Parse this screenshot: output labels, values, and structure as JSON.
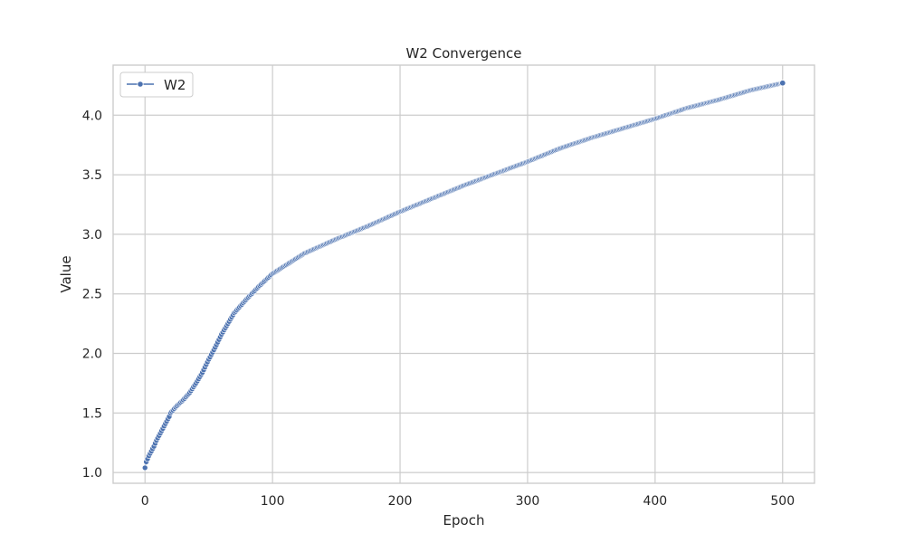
{
  "chart_data": {
    "type": "line",
    "title": "W2 Convergence",
    "xlabel": "Epoch",
    "ylabel": "Value",
    "xlim": [
      -25,
      525
    ],
    "ylim": [
      0.91,
      4.42
    ],
    "xticks": [
      0,
      100,
      200,
      300,
      400,
      500
    ],
    "xtick_labels": [
      "0",
      "100",
      "200",
      "300",
      "400",
      "500"
    ],
    "yticks": [
      1.0,
      1.5,
      2.0,
      2.5,
      3.0,
      3.5,
      4.0
    ],
    "ytick_labels": [
      "1.0",
      "1.5",
      "2.0",
      "2.5",
      "3.0",
      "3.5",
      "4.0"
    ],
    "grid": true,
    "legend_position": "top-left",
    "legend": [
      "W2"
    ],
    "series_color": "#4c72b0",
    "background_color": "#ffffff",
    "grid_color": "#cccccc",
    "series": [
      {
        "name": "W2",
        "marker": "circle",
        "points": [
          [
            0,
            1.04
          ],
          [
            1,
            1.09
          ],
          [
            3,
            1.14
          ],
          [
            5,
            1.18
          ],
          [
            7,
            1.22
          ],
          [
            9,
            1.27
          ],
          [
            11,
            1.31
          ],
          [
            13,
            1.35
          ],
          [
            15,
            1.39
          ],
          [
            17,
            1.43
          ],
          [
            19,
            1.47
          ],
          [
            20,
            1.5
          ],
          [
            25,
            1.56
          ],
          [
            30,
            1.61
          ],
          [
            35,
            1.67
          ],
          [
            40,
            1.75
          ],
          [
            45,
            1.84
          ],
          [
            50,
            1.95
          ],
          [
            55,
            2.05
          ],
          [
            60,
            2.16
          ],
          [
            65,
            2.25
          ],
          [
            70,
            2.34
          ],
          [
            80,
            2.46
          ],
          [
            90,
            2.57
          ],
          [
            100,
            2.67
          ],
          [
            125,
            2.84
          ],
          [
            150,
            2.96
          ],
          [
            175,
            3.07
          ],
          [
            200,
            3.19
          ],
          [
            225,
            3.3
          ],
          [
            250,
            3.41
          ],
          [
            275,
            3.51
          ],
          [
            300,
            3.61
          ],
          [
            325,
            3.72
          ],
          [
            350,
            3.81
          ],
          [
            375,
            3.89
          ],
          [
            400,
            3.97
          ],
          [
            425,
            4.06
          ],
          [
            450,
            4.13
          ],
          [
            475,
            4.21
          ],
          [
            500,
            4.27
          ]
        ]
      }
    ]
  }
}
